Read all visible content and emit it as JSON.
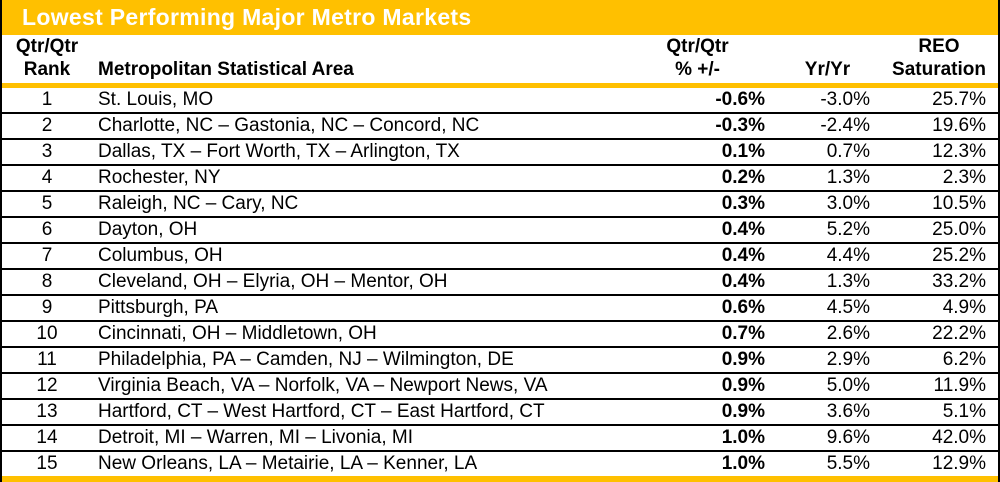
{
  "colors": {
    "accent_gold": "#FFC000",
    "title_text": "#FFFFFF",
    "body_text": "#000000",
    "row_divider": "#000000"
  },
  "table": {
    "headers": {
      "rank": {
        "line1": "Qtr/Qtr",
        "line2": "Rank"
      },
      "msa": {
        "line1": "",
        "line2": "Metropolitan Statistical Area"
      },
      "qtr": {
        "line1": "Qtr/Qtr",
        "line2": "% +/-"
      },
      "yr": {
        "line1": "",
        "line2": "Yr/Yr"
      },
      "reo": {
        "line1": "REO",
        "line2": "Saturation"
      }
    }
  },
  "chart_data": {
    "type": "table",
    "title": "Lowest Performing Major Metro Markets",
    "columns": [
      "Qtr/Qtr Rank",
      "Metropolitan Statistical Area",
      "Qtr/Qtr % +/-",
      "Yr/Yr",
      "REO Saturation"
    ],
    "rows": [
      [
        "1",
        "St. Louis, MO",
        "-0.6%",
        "-3.0%",
        "25.7%"
      ],
      [
        "2",
        "Charlotte, NC – Gastonia, NC – Concord, NC",
        "-0.3%",
        "-2.4%",
        "19.6%"
      ],
      [
        "3",
        "Dallas, TX – Fort Worth, TX – Arlington, TX",
        "0.1%",
        "0.7%",
        "12.3%"
      ],
      [
        "4",
        "Rochester, NY",
        "0.2%",
        "1.3%",
        "2.3%"
      ],
      [
        "5",
        "Raleigh, NC – Cary, NC",
        "0.3%",
        "3.0%",
        "10.5%"
      ],
      [
        "6",
        "Dayton, OH",
        "0.4%",
        "5.2%",
        "25.0%"
      ],
      [
        "7",
        "Columbus, OH",
        "0.4%",
        "4.4%",
        "25.2%"
      ],
      [
        "8",
        "Cleveland, OH – Elyria, OH – Mentor, OH",
        "0.4%",
        "1.3%",
        "33.2%"
      ],
      [
        "9",
        "Pittsburgh, PA",
        "0.6%",
        "4.5%",
        "4.9%"
      ],
      [
        "10",
        "Cincinnati, OH – Middletown, OH",
        "0.7%",
        "2.6%",
        "22.2%"
      ],
      [
        "11",
        "Philadelphia, PA – Camden, NJ – Wilmington, DE",
        "0.9%",
        "2.9%",
        "6.2%"
      ],
      [
        "12",
        "Virginia Beach, VA – Norfolk, VA – Newport News, VA",
        "0.9%",
        "5.0%",
        "11.9%"
      ],
      [
        "13",
        "Hartford, CT – West Hartford, CT – East Hartford, CT",
        "0.9%",
        "3.6%",
        "5.1%"
      ],
      [
        "14",
        "Detroit, MI – Warren, MI – Livonia, MI",
        "1.0%",
        "9.6%",
        "42.0%"
      ],
      [
        "15",
        "New Orleans, LA – Metairie, LA – Kenner, LA",
        "1.0%",
        "5.5%",
        "12.9%"
      ]
    ]
  }
}
